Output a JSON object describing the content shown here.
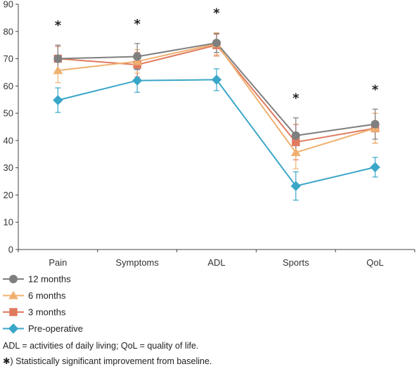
{
  "chart_data": {
    "type": "line",
    "categories": [
      "Pain",
      "Symptoms",
      "ADL",
      "Sports",
      "QoL"
    ],
    "ylim": [
      0,
      90
    ],
    "yticks": [
      0,
      10,
      20,
      30,
      40,
      50,
      60,
      70,
      80,
      90
    ],
    "grid": false,
    "legend_position": "bottom-left",
    "significance_marker": "*",
    "significant": [
      true,
      true,
      true,
      true,
      true
    ],
    "series": [
      {
        "name": "12 months",
        "color": "#7f7f7f",
        "marker": "circle",
        "values": [
          70.0,
          70.8,
          75.8,
          41.8,
          46.0
        ],
        "error": [
          5.0,
          4.8,
          3.5,
          6.5,
          5.5
        ]
      },
      {
        "name": "6 months",
        "color": "#f0b070",
        "marker": "triangle",
        "values": [
          65.7,
          69.0,
          75.5,
          35.6,
          44.5
        ],
        "error": [
          4.5,
          4.3,
          4.0,
          6.0,
          5.5
        ]
      },
      {
        "name": "3 months",
        "color": "#e07a5f",
        "marker": "square",
        "values": [
          70.0,
          67.8,
          75.0,
          39.4,
          44.5
        ],
        "error": [
          4.5,
          4.5,
          4.0,
          6.5,
          5.5
        ]
      },
      {
        "name": "Pre-operative",
        "color": "#3aa6c8",
        "marker": "diamond",
        "values": [
          54.8,
          62.0,
          62.3,
          23.3,
          30.2
        ],
        "error": [
          4.5,
          4.3,
          4.0,
          5.2,
          3.6
        ]
      }
    ]
  },
  "notes": {
    "abbreviations": "ADL = activities of daily living; QoL = quality of life.",
    "significance": "✱) Statistically significant improvement from baseline."
  }
}
